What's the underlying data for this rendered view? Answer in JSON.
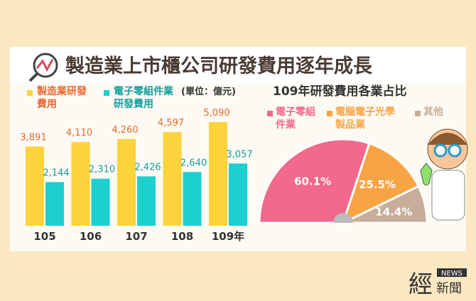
{
  "header": {
    "title": "製造業上市櫃公司研發費用逐年成長"
  },
  "logo": {
    "main": "經",
    "news": "NEWS",
    "sub": "新聞"
  },
  "chart_data": [
    {
      "type": "bar",
      "unit": "(單位：億元)",
      "categories": [
        "105",
        "106",
        "107",
        "108",
        "109年"
      ],
      "series": [
        {
          "name": "製造業研發費用",
          "color": "#fcd33b",
          "values": [
            3891,
            4110,
            4260,
            4597,
            5090
          ],
          "value_labels": [
            "3,891",
            "4,110",
            "4,260",
            "4,597",
            "5,090"
          ]
        },
        {
          "name": "電子零組件業研發費用",
          "color": "#1ecfcf",
          "values": [
            2144,
            2310,
            2426,
            2640,
            3057
          ],
          "value_labels": [
            "2,144",
            "2,310",
            "2,426",
            "2,640",
            "3,057"
          ]
        }
      ]
    },
    {
      "type": "pie",
      "title": "109年研發費用各業占比",
      "categories": [
        "電子零組件業",
        "電腦電子光學製品業",
        "其他"
      ],
      "values": [
        60.1,
        25.5,
        14.4
      ],
      "value_labels": [
        "60.1%",
        "25.5%",
        "14.4%"
      ],
      "colors": [
        "#f2698b",
        "#f9a444",
        "#c9ad9b"
      ]
    }
  ]
}
